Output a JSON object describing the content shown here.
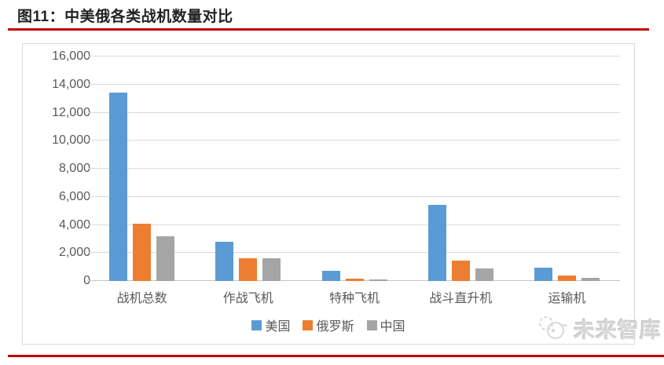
{
  "page": {
    "title": "图11：中美俄各类战机数量对比"
  },
  "rules": {
    "color": "#C00000"
  },
  "watermark": {
    "text": "未来智库",
    "logo": "thinktank-cloud-logo"
  },
  "chart_data": {
    "type": "bar",
    "title": "图11：中美俄各类战机数量对比",
    "categories": [
      "战机总数",
      "作战飞机",
      "特种飞机",
      "战斗直升机",
      "运输机"
    ],
    "series": [
      {
        "name": "美国",
        "color": "#5B9BD5",
        "values": [
          13400,
          2800,
          750,
          5400,
          950
        ]
      },
      {
        "name": "俄罗斯",
        "color": "#ED7D31",
        "values": [
          4100,
          1600,
          150,
          1450,
          400
        ]
      },
      {
        "name": "中国",
        "color": "#A5A5A5",
        "values": [
          3200,
          1600,
          100,
          900,
          220
        ]
      }
    ],
    "xlabel": "",
    "ylabel": "",
    "ylim": [
      0,
      16000
    ],
    "y_tick_step": 2000,
    "y_ticks": [
      "0",
      "2,000",
      "4,000",
      "6,000",
      "8,000",
      "10,000",
      "12,000",
      "14,000",
      "16,000"
    ],
    "grid": true,
    "gridline_color": "#D9D9D9",
    "legend_position": "bottom",
    "plot_border_color": "#D9D9D9",
    "tick_label_color": "#595959"
  }
}
